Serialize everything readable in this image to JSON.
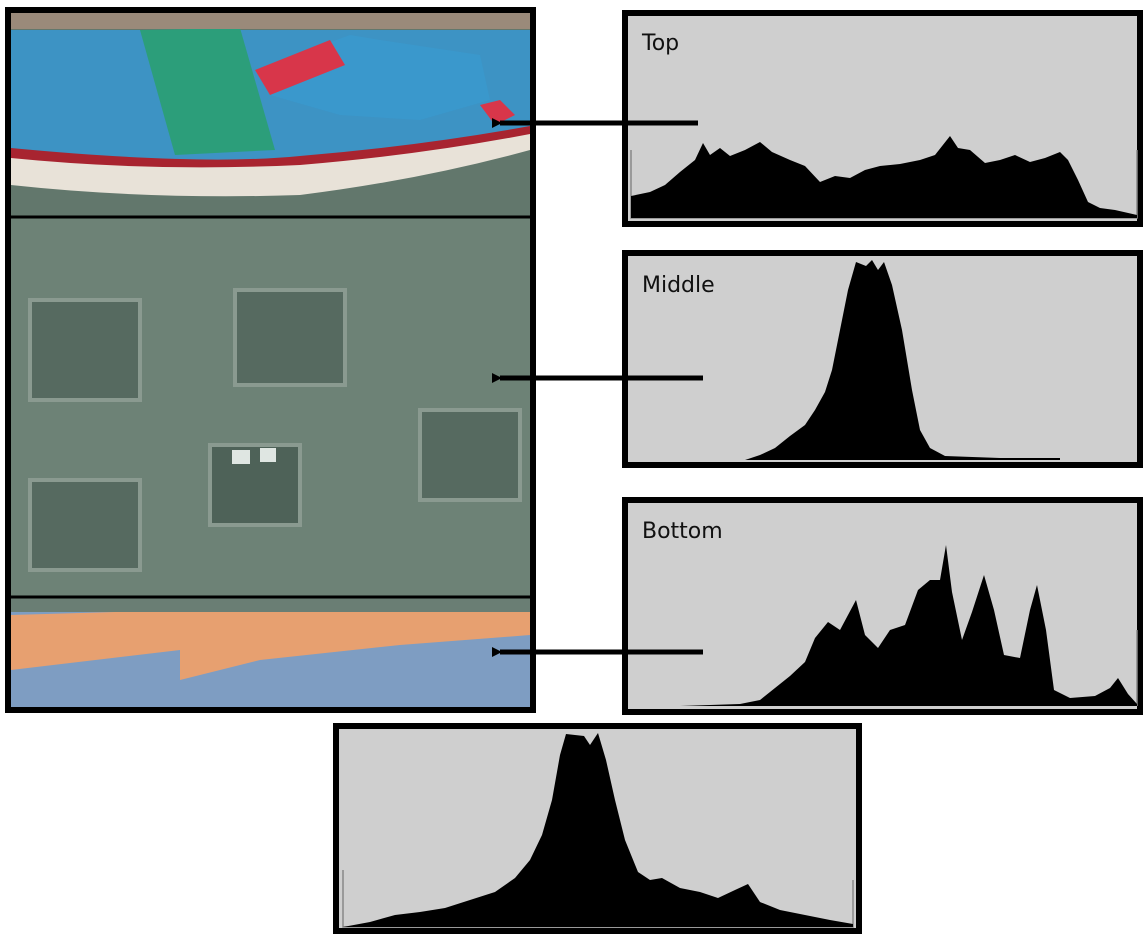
{
  "panels": [
    {
      "label": "Top"
    },
    {
      "label": "Middle"
    },
    {
      "label": "Bottom"
    }
  ]
}
